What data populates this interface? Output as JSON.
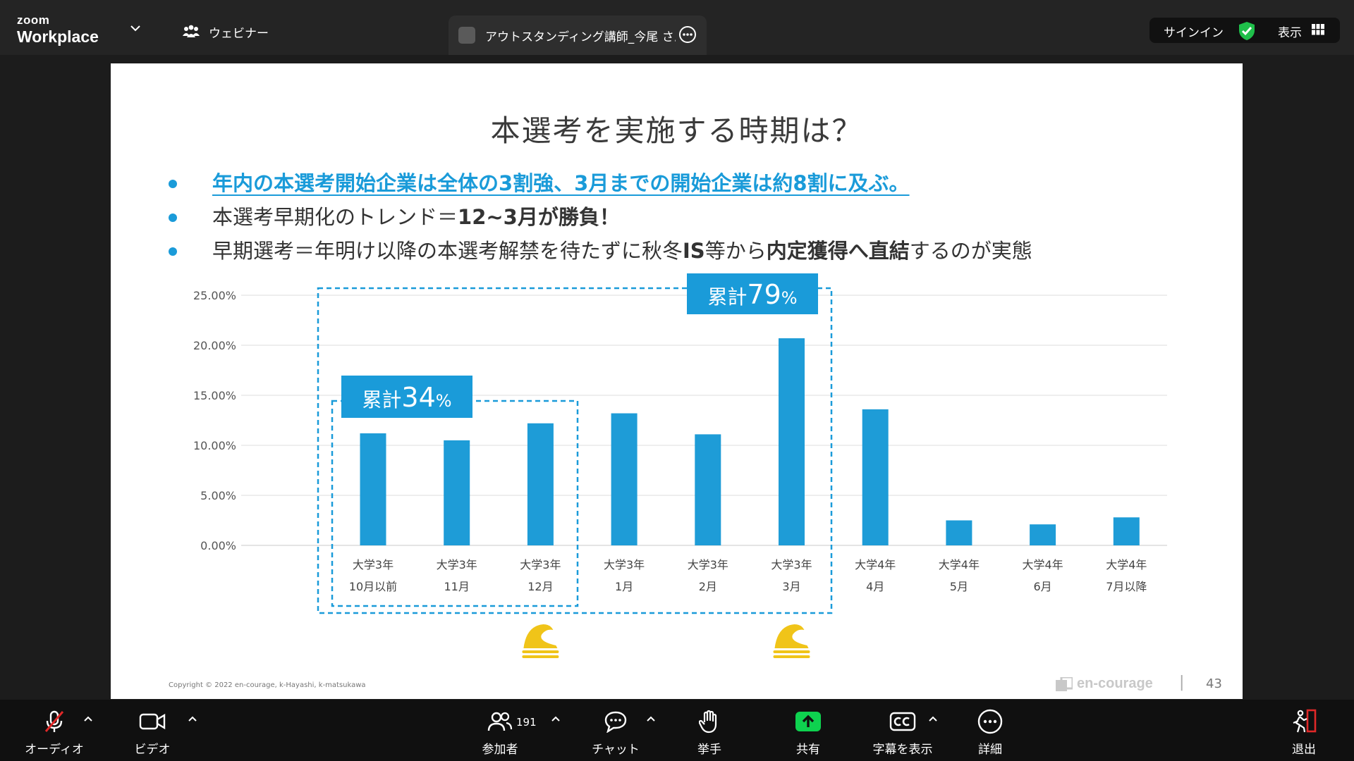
{
  "app": {
    "brand_top": "zoom",
    "brand_bottom": "Workplace",
    "webinar_label": "ウェビナー",
    "tab_title": "アウトスタンディング講師_今尾 さんの",
    "signin_label": "サインイン",
    "view_label": "表示"
  },
  "slide": {
    "title": "本選考を実施する時期は？",
    "bullets": {
      "b1": "年内の本選考開始企業は全体の3割強、3月までの開始企業は約8割に及ぶ。",
      "b2_prefix": "本選考早期化のトレンド＝",
      "b2_bold": "12~3月が勝負！",
      "b3_a": "早期選考＝年明け以降の本選考解禁を待たずに秋冬",
      "b3_b": "IS",
      "b3_c": "等から",
      "b3_d": "内定獲得へ直結",
      "b3_e": "するのが実態"
    },
    "copyright": "Copyright © 2022 en-courage, k-Hayashi, k-matsukawa",
    "brand": "en-courage",
    "separator": "|",
    "page_number": "43"
  },
  "chart_data": {
    "type": "bar",
    "title": "",
    "xlabel": "",
    "ylabel": "",
    "ylim": [
      0,
      25
    ],
    "yticks": [
      "0.00%",
      "5.00%",
      "10.00%",
      "15.00%",
      "20.00%",
      "25.00%"
    ],
    "categories": [
      [
        "大学3年",
        "10月以前"
      ],
      [
        "大学3年",
        "11月"
      ],
      [
        "大学3年",
        "12月"
      ],
      [
        "大学3年",
        "1月"
      ],
      [
        "大学3年",
        "2月"
      ],
      [
        "大学3年",
        "3月"
      ],
      [
        "大学4年",
        "4月"
      ],
      [
        "大学4年",
        "5月"
      ],
      [
        "大学4年",
        "6月"
      ],
      [
        "大学4年",
        "7月以降"
      ]
    ],
    "values": [
      11.2,
      10.5,
      12.2,
      13.2,
      11.1,
      20.7,
      13.6,
      2.5,
      2.1,
      2.8
    ],
    "bar_color": "#1e9cd7",
    "annotations": [
      {
        "label": "累計",
        "value": "34",
        "unit": "%",
        "from": 0,
        "to": 2
      },
      {
        "label": "累計",
        "value": "79",
        "unit": "%",
        "from": 0,
        "to": 5
      }
    ],
    "wave_marks": [
      2,
      5
    ]
  },
  "toolbar": {
    "audio": "オーディオ",
    "video": "ビデオ",
    "participants": "参加者",
    "participants_count": "191",
    "chat": "チャット",
    "raise_hand": "挙手",
    "share": "共有",
    "captions": "字幕を表示",
    "more": "詳細",
    "leave": "退出"
  },
  "colors": {
    "accent": "#1a9bd9",
    "share_green": "#0ed24f",
    "leave_red": "#e02828",
    "shield_green": "#1fbf4a"
  }
}
